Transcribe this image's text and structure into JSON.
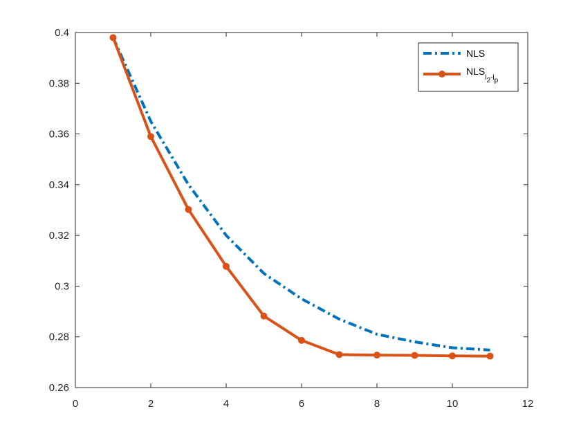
{
  "chart_data": {
    "type": "line",
    "title": "",
    "xlabel": "",
    "ylabel": "",
    "xlim": [
      0,
      12
    ],
    "ylim": [
      0.26,
      0.4
    ],
    "xticks": [
      0,
      2,
      4,
      6,
      8,
      10,
      12
    ],
    "yticks": [
      0.26,
      0.28,
      0.3,
      0.32,
      0.34,
      0.36,
      0.38,
      0.4
    ],
    "xtick_labels": [
      "0",
      "2",
      "4",
      "6",
      "8",
      "10",
      "12"
    ],
    "ytick_labels": [
      "0.26",
      "0.28",
      "0.3",
      "0.32",
      "0.34",
      "0.36",
      "0.38",
      "0.4"
    ],
    "grid": false,
    "legend_position": "top-right",
    "series": [
      {
        "name": "NLS",
        "color": "#0072BD",
        "line_style": "dash-dot",
        "marker": "none",
        "x": [
          1,
          2,
          3,
          4,
          5,
          6,
          7,
          8,
          9,
          10,
          11
        ],
        "values": [
          0.398,
          0.365,
          0.34,
          0.32,
          0.305,
          0.295,
          0.287,
          0.281,
          0.278,
          0.2757,
          0.2748
        ]
      },
      {
        "name": "NLS",
        "name_sub1": "l",
        "name_sub2": "2",
        "name_sep": "-",
        "name_sub3": "l",
        "name_sub4": "p",
        "color": "#D95319",
        "line_style": "solid",
        "marker": "circle",
        "x": [
          1,
          2,
          3,
          4,
          5,
          6,
          7,
          8,
          9,
          10,
          11
        ],
        "values": [
          0.398,
          0.359,
          0.3302,
          0.3078,
          0.2882,
          0.2786,
          0.273,
          0.2728,
          0.2727,
          0.2725,
          0.2724
        ]
      }
    ]
  }
}
